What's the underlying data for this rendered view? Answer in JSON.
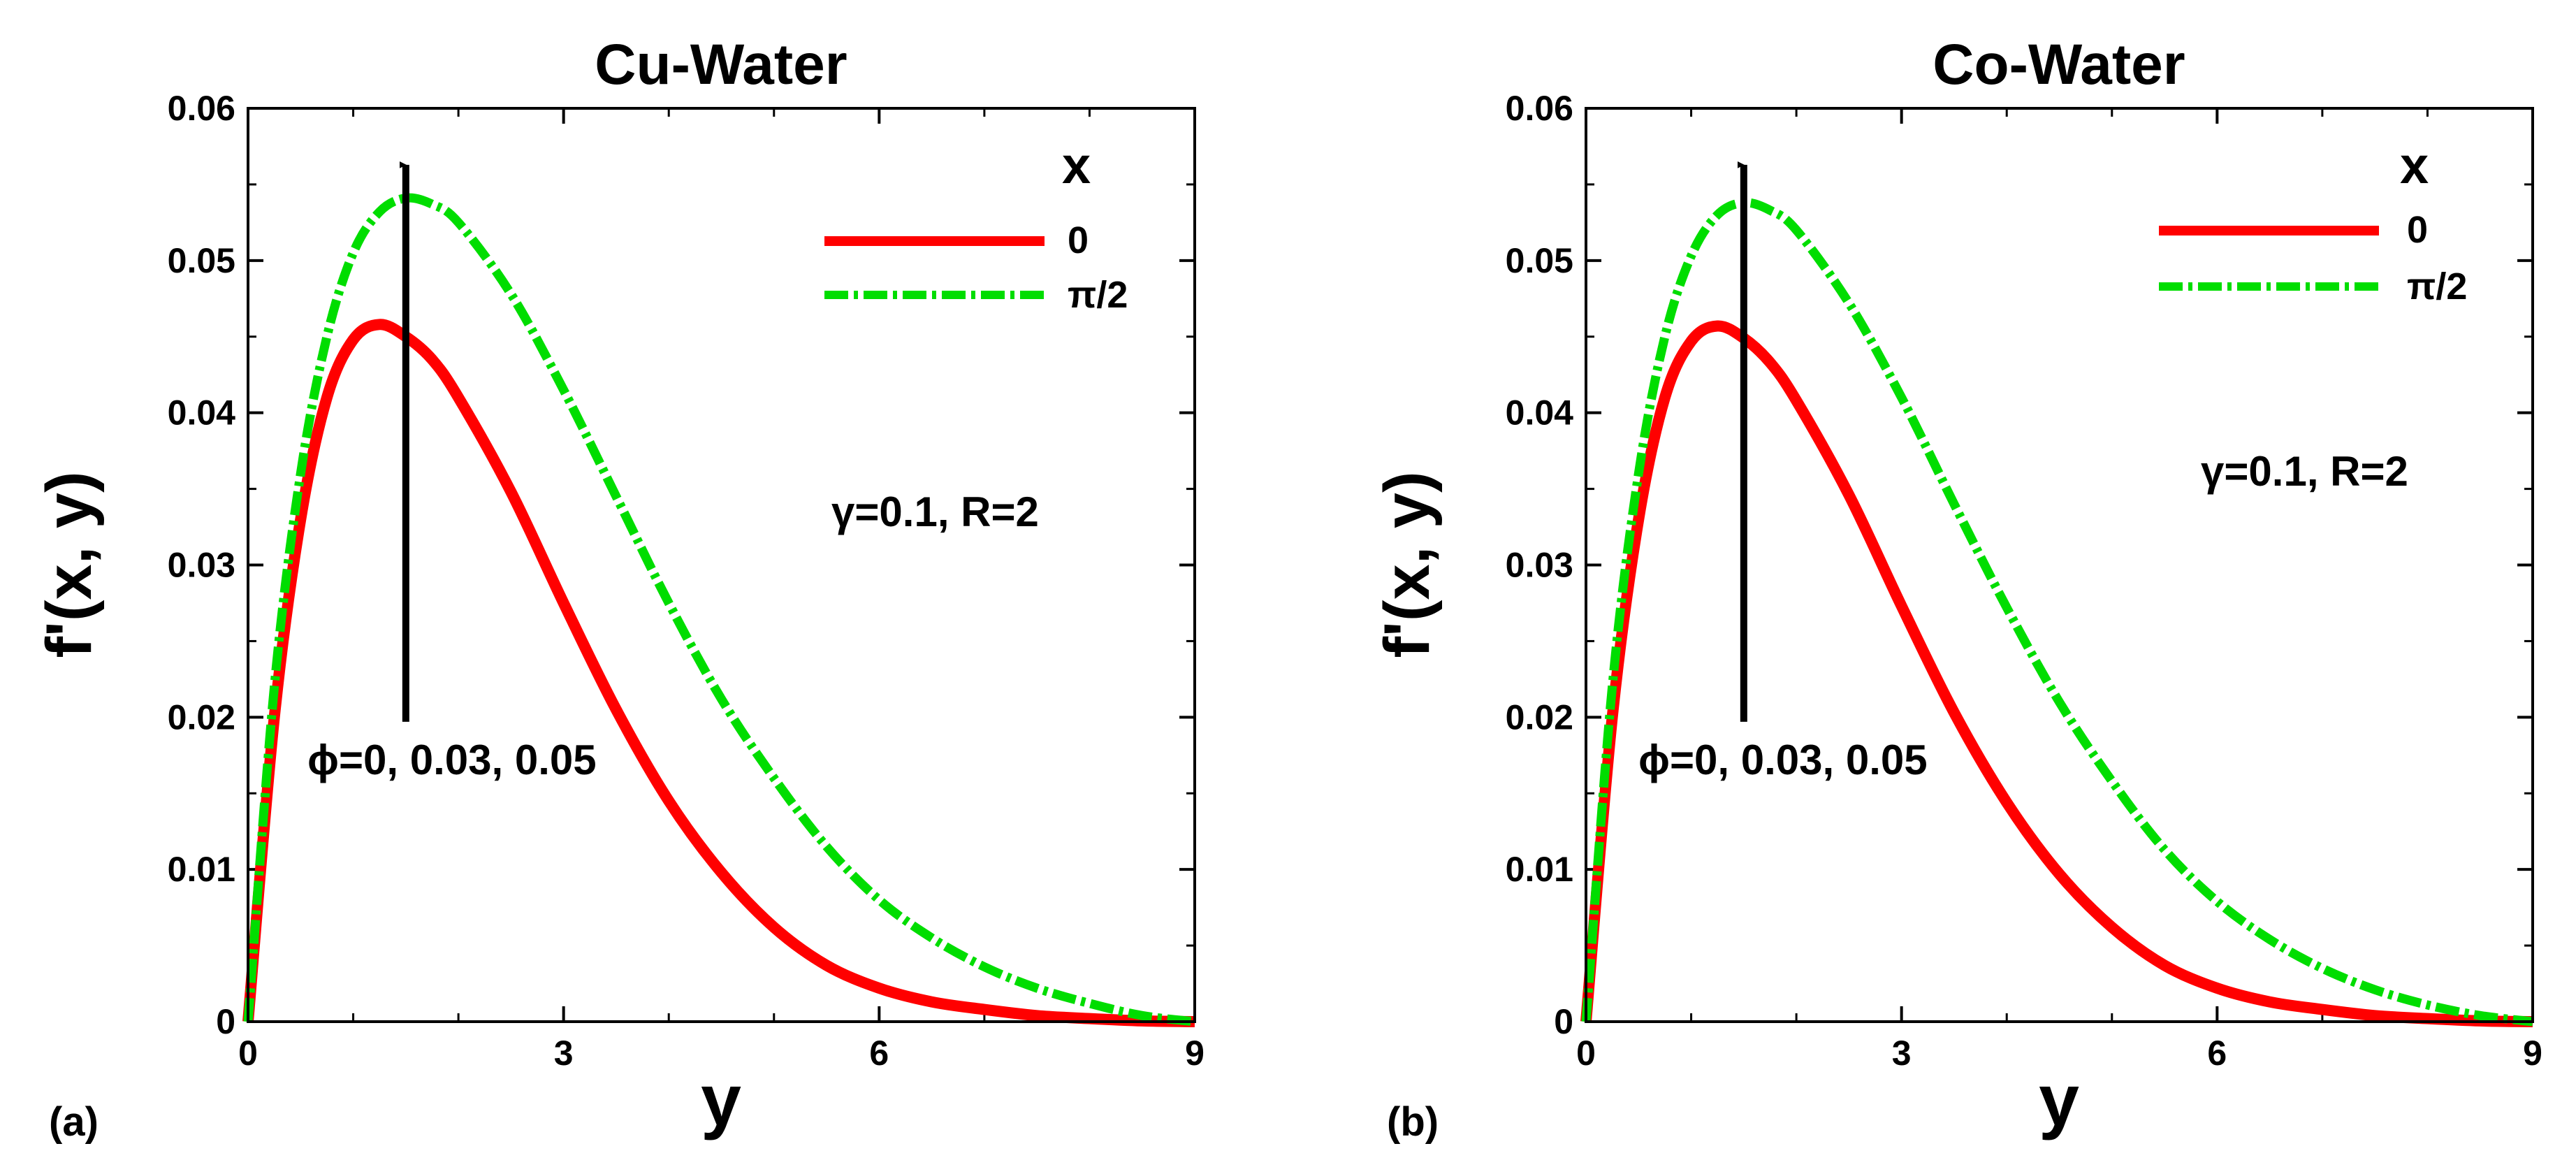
{
  "chart_data": [
    {
      "panel_label": "(a)",
      "type": "line",
      "title": "Cu-Water",
      "xlabel": "y",
      "ylabel": "f'(x, y)",
      "xlim": [
        0,
        9
      ],
      "ylim": [
        0,
        0.06
      ],
      "xticks": [
        "0",
        "3",
        "6",
        "9"
      ],
      "yticks": [
        "0",
        "0.01",
        "0.02",
        "0.03",
        "0.04",
        "0.05",
        "0.06"
      ],
      "legend_title": "x",
      "legend_position": "top-right",
      "annotation_params": "γ=0.1, R=2",
      "annotation_phi": "ϕ=0, 0.03, 0.05",
      "arrow": {
        "x": 1.5,
        "from": 0.0197,
        "to": 0.0595
      },
      "series": [
        {
          "name": "0",
          "color": "#ff0000",
          "style": "solid",
          "x": [
            0,
            0.25,
            0.5,
            0.75,
            1,
            1.25,
            1.5,
            1.75,
            2,
            2.5,
            3,
            3.5,
            4,
            4.5,
            5,
            5.5,
            6,
            6.5,
            7,
            7.5,
            8,
            8.5,
            9
          ],
          "y": [
            0,
            0.02,
            0.033,
            0.041,
            0.0448,
            0.0458,
            0.045,
            0.0435,
            0.041,
            0.0348,
            0.0275,
            0.0205,
            0.0145,
            0.0098,
            0.0062,
            0.0037,
            0.0022,
            0.0013,
            0.0008,
            0.0004,
            0.0002,
            5e-05,
            0
          ]
        },
        {
          "name": "π/2",
          "color": "#00dd00",
          "style": "dash-dot",
          "x": [
            0,
            0.25,
            0.5,
            0.75,
            1,
            1.25,
            1.5,
            1.75,
            2,
            2.5,
            3,
            3.5,
            4,
            4.5,
            5,
            5.5,
            6,
            6.5,
            7,
            7.5,
            8,
            8.5,
            9
          ],
          "y": [
            0,
            0.022,
            0.036,
            0.045,
            0.0505,
            0.0532,
            0.0541,
            0.0537,
            0.0525,
            0.0478,
            0.0415,
            0.0345,
            0.0275,
            0.0212,
            0.016,
            0.0115,
            0.008,
            0.0055,
            0.0036,
            0.0022,
            0.0012,
            0.0004,
            0
          ]
        }
      ]
    },
    {
      "panel_label": "(b)",
      "type": "line",
      "title": "Co-Water",
      "xlabel": "y",
      "ylabel": "f'(x, y)",
      "xlim": [
        0,
        9
      ],
      "ylim": [
        0,
        0.06
      ],
      "xticks": [
        "0",
        "3",
        "6",
        "9"
      ],
      "yticks": [
        "0",
        "0.01",
        "0.02",
        "0.03",
        "0.04",
        "0.05",
        "0.06"
      ],
      "legend_title": "x",
      "legend_position": "top-right",
      "annotation_params": "γ=0.1, R=2",
      "annotation_phi": "ϕ=0, 0.03, 0.05",
      "arrow": {
        "x": 1.5,
        "from": 0.0197,
        "to": 0.0595
      },
      "series": [
        {
          "name": "0",
          "color": "#ff0000",
          "style": "solid",
          "x": [
            0,
            0.25,
            0.5,
            0.75,
            1,
            1.25,
            1.5,
            1.75,
            2,
            2.5,
            3,
            3.5,
            4,
            4.5,
            5,
            5.5,
            6,
            6.5,
            7,
            7.5,
            8,
            8.5,
            9
          ],
          "y": [
            0,
            0.02,
            0.033,
            0.041,
            0.0447,
            0.0457,
            0.0449,
            0.0433,
            0.0408,
            0.0346,
            0.0273,
            0.0203,
            0.0144,
            0.0097,
            0.0062,
            0.0037,
            0.0022,
            0.0013,
            0.0008,
            0.0004,
            0.0002,
            5e-05,
            0
          ]
        },
        {
          "name": "π/2",
          "color": "#00dd00",
          "style": "dash-dot",
          "x": [
            0,
            0.25,
            0.5,
            0.75,
            1,
            1.25,
            1.5,
            1.75,
            2,
            2.5,
            3,
            3.5,
            4,
            4.5,
            5,
            5.5,
            6,
            6.5,
            7,
            7.5,
            8,
            8.5,
            9
          ],
          "y": [
            0,
            0.022,
            0.036,
            0.045,
            0.0503,
            0.053,
            0.0538,
            0.0533,
            0.052,
            0.0472,
            0.041,
            0.034,
            0.0272,
            0.021,
            0.0158,
            0.0113,
            0.0079,
            0.0054,
            0.0035,
            0.0021,
            0.0011,
            0.0004,
            0
          ]
        }
      ]
    }
  ]
}
